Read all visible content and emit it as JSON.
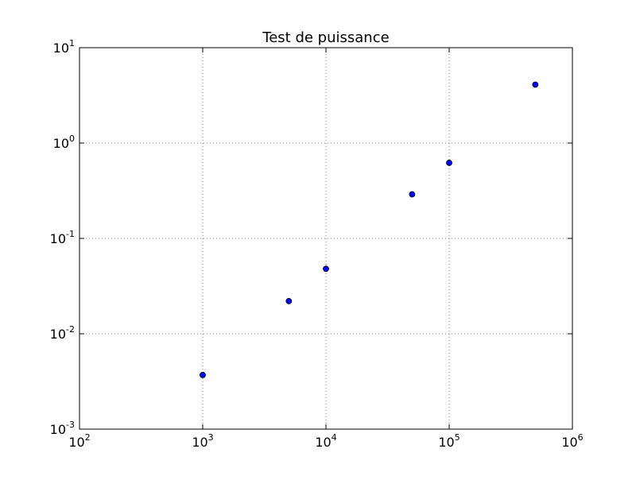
{
  "chart_data": {
    "type": "scatter",
    "title": "Test de puissance",
    "xlabel": "",
    "ylabel": "",
    "xscale": "log",
    "yscale": "log",
    "xlim": [
      100,
      1000000
    ],
    "ylim": [
      0.001,
      10
    ],
    "grid": true,
    "x_ticks": [
      {
        "base": "10",
        "exp": "2"
      },
      {
        "base": "10",
        "exp": "3"
      },
      {
        "base": "10",
        "exp": "4"
      },
      {
        "base": "10",
        "exp": "5"
      },
      {
        "base": "10",
        "exp": "6"
      }
    ],
    "y_ticks": [
      {
        "base": "10",
        "exp": "-3"
      },
      {
        "base": "10",
        "exp": "-2"
      },
      {
        "base": "10",
        "exp": "-1"
      },
      {
        "base": "10",
        "exp": "0"
      },
      {
        "base": "10",
        "exp": "1"
      }
    ],
    "points": [
      {
        "x": 1000,
        "y": 0.0037
      },
      {
        "x": 5000,
        "y": 0.022
      },
      {
        "x": 10000,
        "y": 0.048
      },
      {
        "x": 50000,
        "y": 0.29
      },
      {
        "x": 100000,
        "y": 0.62
      },
      {
        "x": 500000,
        "y": 4.1
      }
    ],
    "marker_color": "#0000ff",
    "marker_edge_color": "#000000",
    "grid_color": "#808080"
  }
}
